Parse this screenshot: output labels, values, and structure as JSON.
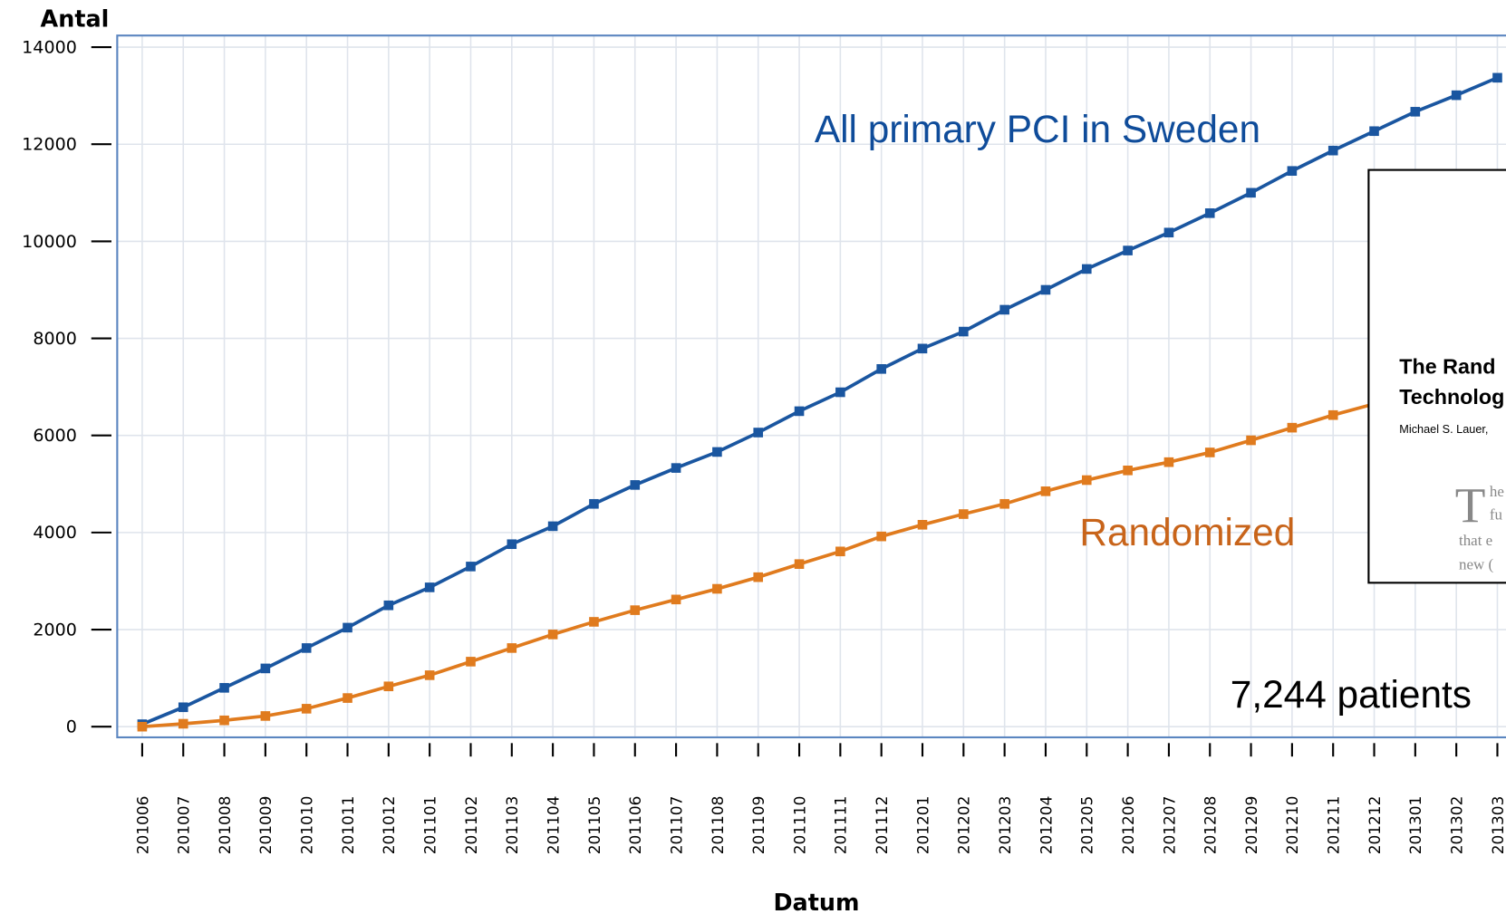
{
  "chart_data": {
    "type": "line",
    "x_label": "Datum",
    "y_label": "Antal",
    "categories": [
      "201006",
      "201007",
      "201008",
      "201009",
      "201010",
      "201011",
      "201012",
      "201101",
      "201102",
      "201103",
      "201104",
      "201105",
      "201106",
      "201107",
      "201108",
      "201109",
      "201110",
      "201111",
      "201112",
      "201201",
      "201202",
      "201203",
      "201204",
      "201205",
      "201206",
      "201207",
      "201208",
      "201209",
      "201210",
      "201211",
      "201212",
      "201301",
      "201302",
      "201303"
    ],
    "series": [
      {
        "color": "#1a56a0",
        "values": [
          50,
          400,
          800,
          1200,
          1620,
          2040,
          2500,
          2870,
          3300,
          3760,
          4130,
          4590,
          4980,
          5330,
          5660,
          6060,
          6500,
          6890,
          7370,
          7790,
          8140,
          8590,
          9000,
          9430,
          9810,
          10180,
          10580,
          11000,
          11450,
          11870,
          12270,
          12670,
          13010,
          13370
        ]
      },
      {
        "color": "#e07b1e",
        "values": [
          0,
          60,
          130,
          220,
          370,
          590,
          830,
          1060,
          1340,
          1620,
          1900,
          2160,
          2400,
          2620,
          2840,
          3080,
          3350,
          3610,
          3920,
          4160,
          4380,
          4590,
          4850,
          5080,
          5280,
          5450,
          5650,
          5900,
          6160,
          6420,
          6650,
          null,
          null,
          null
        ]
      }
    ],
    "ylim": [
      -220,
      14240
    ],
    "yticks": [
      0,
      2000,
      4000,
      6000,
      8000,
      10000,
      12000,
      14000
    ],
    "grid": true,
    "annotations": [
      "All primary PCI in Sweden",
      "Randomized",
      "7,244 patients"
    ],
    "inset_text": [
      "The Rand",
      "Technolog",
      "Michael S. Lauer,",
      "T",
      "he",
      "fu",
      "that e",
      "new ("
    ]
  }
}
